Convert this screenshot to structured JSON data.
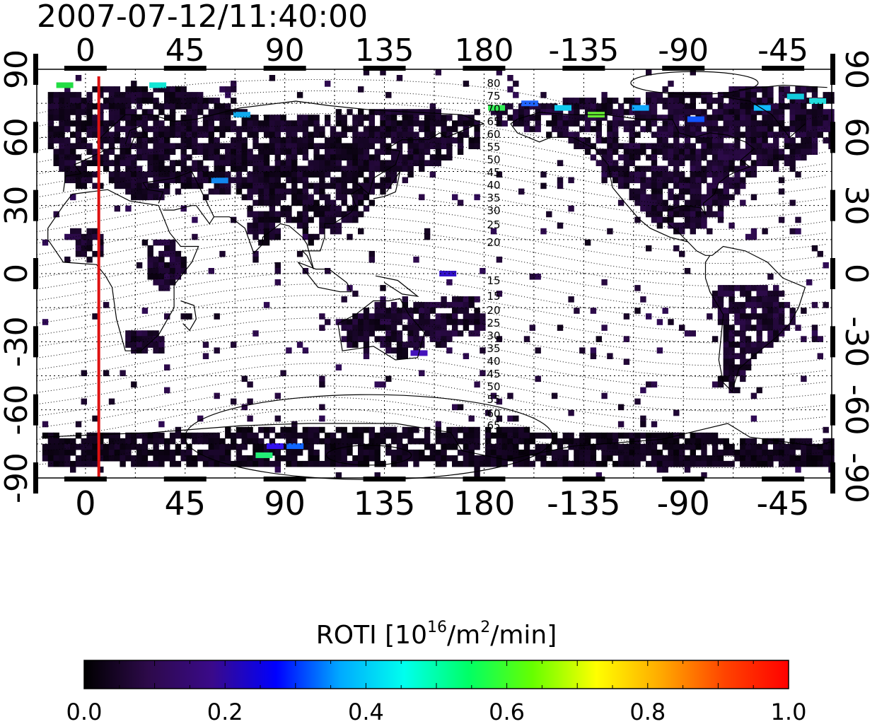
{
  "title": "2007-07-12/11:40:00",
  "map": {
    "lon_min": -22,
    "lon_max": 337,
    "lat_min": -90,
    "lat_max": 90,
    "lon_ticks": [
      0,
      45,
      90,
      135,
      180,
      225,
      270,
      315
    ],
    "lon_tick_labels": [
      "0",
      "45",
      "90",
      "135",
      "180",
      "-135",
      "-90",
      "-45"
    ],
    "lat_ticks": [
      90,
      60,
      30,
      0,
      -30,
      -60,
      -90
    ],
    "lat_tick_labels": [
      "90",
      "60",
      "30",
      "0",
      "-30",
      "-60",
      "-90"
    ],
    "grid": true,
    "terminator_lon": 6,
    "terminator_color": "#dd1111",
    "magnetic_latitude_labels": [
      "80",
      "75",
      "70",
      "65",
      "60",
      "55",
      "50",
      "45",
      "40",
      "35",
      "30",
      "25",
      "20",
      "15",
      "15",
      "20",
      "25",
      "30",
      "35",
      "40",
      "45",
      "50",
      "55",
      "60",
      "65",
      "70",
      "75"
    ]
  },
  "colorbar": {
    "label": "ROTI  [10",
    "label_sup1": "16",
    "label_mid": "/m",
    "label_sup2": "2",
    "label_end": "/min]",
    "range": [
      0.0,
      1.0
    ],
    "tick_labels": [
      "0.0",
      "0.2",
      "0.4",
      "0.6",
      "0.8",
      "1.0"
    ],
    "colormap_stops": [
      "#000000",
      "#2d0a4a",
      "#3a0a8a",
      "#0000ff",
      "#00aaff",
      "#00ffee",
      "#00ff66",
      "#66ff00",
      "#ffff00",
      "#ffaa00",
      "#ff4400",
      "#ff0000"
    ]
  },
  "data_regions": [
    {
      "name": "europe-asia",
      "points": [
        [
          -18,
          78
        ],
        [
          20,
          82
        ],
        [
          45,
          80
        ],
        [
          60,
          75
        ],
        [
          75,
          68
        ],
        [
          110,
          70
        ],
        [
          140,
          72
        ],
        [
          160,
          70
        ],
        [
          178,
          68
        ],
        [
          178,
          55
        ],
        [
          160,
          48
        ],
        [
          140,
          40
        ],
        [
          130,
          30
        ],
        [
          120,
          22
        ],
        [
          108,
          18
        ],
        [
          100,
          12
        ],
        [
          95,
          20
        ],
        [
          80,
          28
        ],
        [
          70,
          32
        ],
        [
          55,
          35
        ],
        [
          40,
          38
        ],
        [
          30,
          30
        ],
        [
          20,
          32
        ],
        [
          10,
          38
        ],
        [
          -5,
          36
        ],
        [
          -12,
          42
        ],
        [
          -18,
          55
        ]
      ],
      "value": 0.04
    },
    {
      "name": "north-america",
      "points": [
        [
          181,
          72
        ],
        [
          200,
          74
        ],
        [
          230,
          76
        ],
        [
          260,
          78
        ],
        [
          290,
          80
        ],
        [
          320,
          82
        ],
        [
          337,
          78
        ],
        [
          337,
          55
        ],
        [
          320,
          48
        ],
        [
          300,
          42
        ],
        [
          290,
          30
        ],
        [
          280,
          20
        ],
        [
          270,
          15
        ],
        [
          258,
          20
        ],
        [
          248,
          30
        ],
        [
          238,
          40
        ],
        [
          228,
          50
        ],
        [
          215,
          58
        ],
        [
          200,
          62
        ],
        [
          185,
          65
        ]
      ],
      "value": 0.05
    },
    {
      "name": "south-america",
      "points": [
        [
          283,
          -5
        ],
        [
          300,
          -5
        ],
        [
          315,
          -10
        ],
        [
          320,
          -22
        ],
        [
          312,
          -30
        ],
        [
          300,
          -40
        ],
        [
          293,
          -55
        ],
        [
          285,
          -50
        ],
        [
          288,
          -30
        ],
        [
          282,
          -15
        ]
      ],
      "value": 0.05
    },
    {
      "name": "australia",
      "points": [
        [
          115,
          -22
        ],
        [
          130,
          -14
        ],
        [
          145,
          -12
        ],
        [
          153,
          -25
        ],
        [
          150,
          -37
        ],
        [
          140,
          -38
        ],
        [
          130,
          -32
        ],
        [
          116,
          -34
        ]
      ],
      "value": 0.05
    },
    {
      "name": "south-africa",
      "points": [
        [
          15,
          -28
        ],
        [
          25,
          -25
        ],
        [
          33,
          -27
        ],
        [
          34,
          -35
        ],
        [
          25,
          -38
        ],
        [
          16,
          -34
        ]
      ],
      "value": 0.05
    },
    {
      "name": "antarctica",
      "points": [
        [
          -20,
          -72
        ],
        [
          60,
          -70
        ],
        [
          130,
          -68
        ],
        [
          200,
          -70
        ],
        [
          270,
          -72
        ],
        [
          337,
          -74
        ],
        [
          337,
          -86
        ],
        [
          -20,
          -86
        ]
      ],
      "value": 0.03
    },
    {
      "name": "west-africa",
      "points": [
        [
          -8,
          18
        ],
        [
          5,
          18
        ],
        [
          8,
          8
        ],
        [
          -5,
          5
        ]
      ],
      "value": 0.05
    },
    {
      "name": "east-africa",
      "points": [
        [
          25,
          15
        ],
        [
          42,
          12
        ],
        [
          45,
          2
        ],
        [
          35,
          -10
        ],
        [
          28,
          -5
        ]
      ],
      "value": 0.05
    },
    {
      "name": "south-asia",
      "points": [
        [
          70,
          28
        ],
        [
          88,
          26
        ],
        [
          88,
          15
        ],
        [
          78,
          10
        ],
        [
          72,
          18
        ]
      ],
      "value": 0.04
    },
    {
      "name": "central-pacific",
      "points": [
        [
          145,
          -15
        ],
        [
          175,
          -10
        ],
        [
          180,
          -25
        ],
        [
          160,
          -35
        ],
        [
          148,
          -25
        ]
      ],
      "value": 0.05
    }
  ],
  "hot_spots": [
    {
      "lon": -10,
      "lat": 83,
      "color": "#22dd44"
    },
    {
      "lon": 32,
      "lat": 83,
      "color": "#11e6d4"
    },
    {
      "lon": 70,
      "lat": 70,
      "color": "#11aaee"
    },
    {
      "lon": 60,
      "lat": 41,
      "color": "#1188ee"
    },
    {
      "lon": 185,
      "lat": 73,
      "color": "#33ee55"
    },
    {
      "lon": 200,
      "lat": 75,
      "color": "#2266ff"
    },
    {
      "lon": 215,
      "lat": 73,
      "color": "#11ccee"
    },
    {
      "lon": 230,
      "lat": 70,
      "color": "#66ee33"
    },
    {
      "lon": 250,
      "lat": 73,
      "color": "#11aaff"
    },
    {
      "lon": 275,
      "lat": 68,
      "color": "#1155ff"
    },
    {
      "lon": 305,
      "lat": 73,
      "color": "#11bbff"
    },
    {
      "lon": 320,
      "lat": 78,
      "color": "#11ccdd"
    },
    {
      "lon": 330,
      "lat": 76,
      "color": "#22dddd"
    },
    {
      "lon": 80,
      "lat": -80,
      "color": "#22ee77"
    },
    {
      "lon": 94,
      "lat": -76,
      "color": "#1166ff"
    },
    {
      "lon": 85,
      "lat": -76,
      "color": "#3311ee"
    },
    {
      "lon": 163,
      "lat": 0,
      "color": "#3311cc"
    },
    {
      "lon": 150,
      "lat": -35,
      "color": "#4411bb"
    }
  ]
}
